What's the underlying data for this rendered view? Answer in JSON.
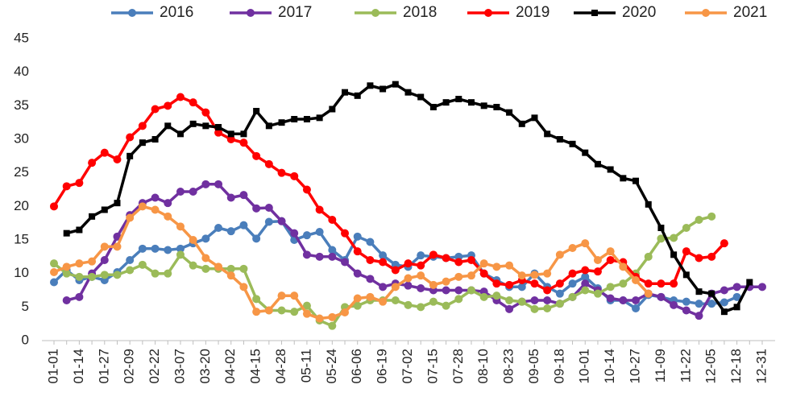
{
  "chart_data": {
    "type": "line",
    "categories": [
      "01-01",
      null,
      "01-14",
      null,
      "01-27",
      null,
      "02-09",
      null,
      "02-22",
      null,
      "03-07",
      null,
      "03-20",
      null,
      "04-02",
      null,
      "04-15",
      null,
      "04-28",
      null,
      "05-11",
      null,
      "05-24",
      null,
      "06-06",
      null,
      "06-19",
      null,
      "07-02",
      null,
      "07-15",
      null,
      "07-28",
      null,
      "08-10",
      null,
      "08-23",
      null,
      "09-05",
      null,
      "09-18",
      null,
      "10-01",
      null,
      "10-14",
      null,
      "10-27",
      null,
      "11-09",
      null,
      "11-22",
      null,
      "12-05",
      null,
      "12-18",
      null,
      "12-31"
    ],
    "ylim": [
      0,
      45
    ],
    "yticks": [
      0,
      5,
      10,
      15,
      20,
      25,
      30,
      35,
      40,
      45
    ],
    "grid": false,
    "legend": "top",
    "series": [
      {
        "name": "2016",
        "color": "#4a7ebb",
        "marker": "circle",
        "values": [
          8.7,
          10.5,
          9,
          9.5,
          9,
          10.2,
          12,
          13.7,
          13.7,
          13.5,
          13.7,
          14.5,
          15.2,
          16.8,
          16.3,
          17.2,
          15.2,
          17.7,
          17.8,
          15,
          15.7,
          16.2,
          13.5,
          12,
          15.5,
          14.7,
          12.7,
          11.3,
          11,
          12.7,
          12.5,
          12.3,
          12.5,
          12.7,
          10,
          9,
          8,
          8,
          10,
          8,
          7,
          8.5,
          9.5,
          7.8,
          6,
          6,
          4.8,
          6.8,
          6.5,
          6,
          5.8,
          5.5,
          5.5,
          5.7,
          6.5,
          null,
          null
        ]
      },
      {
        "name": "2017",
        "color": "#7030a0",
        "marker": "circle",
        "values": [
          null,
          6,
          6.5,
          10,
          12,
          15.5,
          18.7,
          20.5,
          21.3,
          20.5,
          22.2,
          22.2,
          23.3,
          23.3,
          21.3,
          21.7,
          19.7,
          19.8,
          17.8,
          16,
          12.8,
          12.5,
          12.5,
          11.7,
          10,
          9.2,
          8,
          8.5,
          8.2,
          7.8,
          7.5,
          7.5,
          7.5,
          7.5,
          7.3,
          6,
          4.7,
          5.8,
          6,
          6,
          5.5,
          6.5,
          8.5,
          7.5,
          6.3,
          6,
          6,
          7,
          6.5,
          5.3,
          4.5,
          3.7,
          7,
          7.5,
          8,
          8,
          8
        ]
      },
      {
        "name": "2018",
        "color": "#9bbb59",
        "marker": "circle",
        "values": [
          11.5,
          10,
          9.5,
          9.5,
          9.8,
          9.8,
          10.5,
          11.3,
          10,
          10,
          12.8,
          11.2,
          10.7,
          10.7,
          10.7,
          10.7,
          6.2,
          4.5,
          4.5,
          4.3,
          5.2,
          3,
          2.2,
          5,
          5.2,
          6,
          6,
          6,
          5.3,
          5,
          5.8,
          5.2,
          6.2,
          7.5,
          6.5,
          6.7,
          6,
          5.8,
          4.7,
          4.8,
          5.5,
          6.5,
          7.5,
          7,
          8,
          8.5,
          10,
          12.5,
          15.2,
          15.3,
          16.8,
          18,
          18.5,
          null,
          null,
          null,
          null
        ]
      },
      {
        "name": "2019",
        "color": "#ff0000",
        "marker": "circle",
        "values": [
          20,
          23,
          23.5,
          26.5,
          28,
          27,
          30.3,
          32,
          34.5,
          35,
          36.3,
          35.5,
          34,
          31,
          30,
          29.5,
          27.5,
          26.3,
          25,
          24.5,
          22.5,
          19.5,
          18,
          16,
          13.3,
          12,
          11.7,
          10.5,
          11.5,
          11.2,
          12.8,
          12.3,
          11.7,
          12,
          10,
          8.5,
          8.3,
          9,
          8.5,
          7.5,
          8.5,
          10,
          10.5,
          10.3,
          12,
          11.7,
          9.5,
          8.5,
          8.5,
          8.5,
          13.3,
          12.3,
          12.5,
          14.5,
          null,
          null,
          null
        ]
      },
      {
        "name": "2020",
        "color": "#000000",
        "marker": "square",
        "values": [
          null,
          16,
          16.5,
          18.5,
          19.5,
          20.5,
          27.5,
          29.5,
          30,
          32,
          30.8,
          32.3,
          32,
          31.8,
          30.8,
          30.8,
          34.2,
          32,
          32.5,
          33,
          33,
          33.2,
          34.5,
          37,
          36.5,
          38,
          37.5,
          38.2,
          37,
          36.3,
          34.8,
          35.5,
          36,
          35.5,
          35,
          34.8,
          34,
          32.3,
          33.2,
          30.8,
          30,
          29.3,
          28,
          26.3,
          25.5,
          24.2,
          23.8,
          20.3,
          16.8,
          12.8,
          9.8,
          7.3,
          7,
          4.3,
          5,
          8.7,
          null
        ]
      },
      {
        "name": "2021",
        "color": "#f79646",
        "marker": "circle",
        "values": [
          10.2,
          11,
          11.5,
          11.8,
          14,
          14,
          18.3,
          20,
          19.5,
          18.5,
          17,
          15,
          12.3,
          11,
          9.7,
          8,
          4.3,
          4.5,
          6.7,
          6.7,
          4,
          3.3,
          3.5,
          4.2,
          6.3,
          6.5,
          5.8,
          8,
          9.3,
          9.7,
          8.3,
          8.8,
          9.5,
          9.7,
          11.5,
          11,
          11.2,
          9.7,
          9.8,
          10,
          12.8,
          13.8,
          14.5,
          12,
          13.3,
          11,
          9,
          7,
          null,
          null,
          null,
          null,
          null,
          null,
          null,
          null,
          null
        ]
      }
    ]
  }
}
